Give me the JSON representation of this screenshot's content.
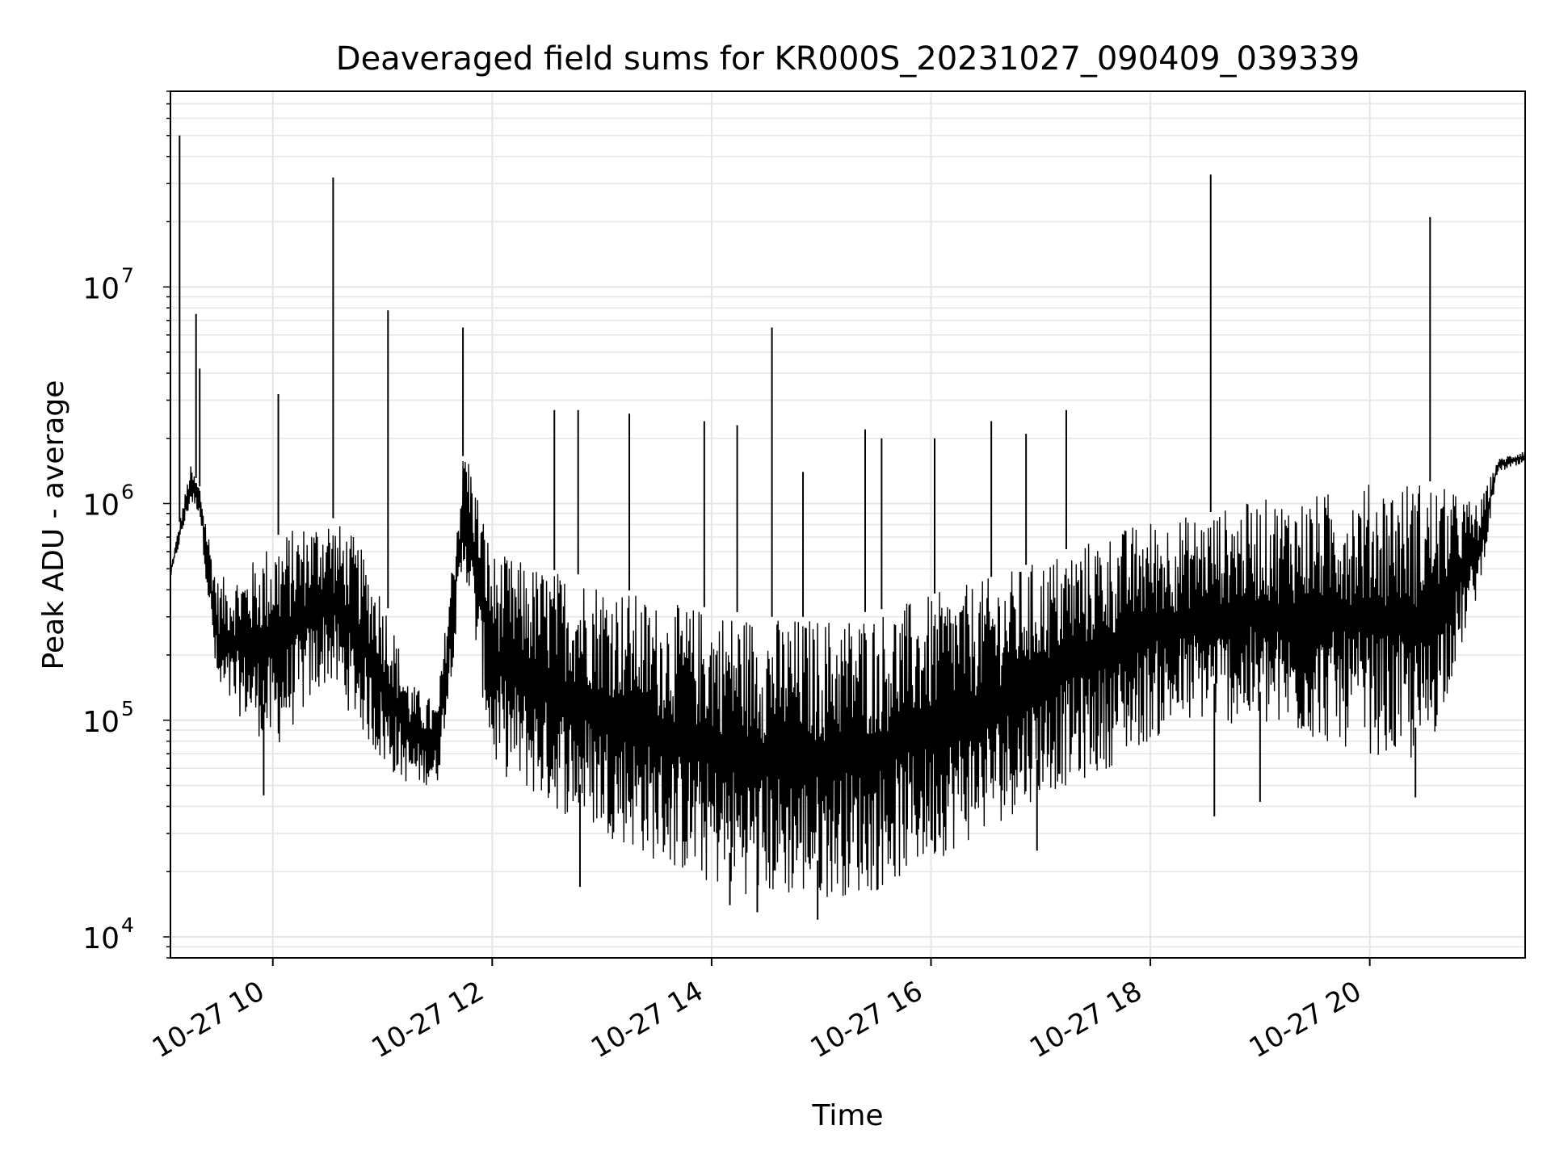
{
  "chart_data": {
    "type": "line",
    "title": "Deaveraged field sums for KR000S_20231027_090409_039339",
    "xlabel": "Time",
    "ylabel": "Peak ADU - average",
    "x_scale": "time",
    "y_scale": "log",
    "xlim": [
      "2023-10-27 09:04",
      "2023-10-27 21:25"
    ],
    "ylim": [
      8000,
      80000000
    ],
    "x_ticks": [
      {
        "value": "2023-10-27 10:00",
        "label": "10-27 10"
      },
      {
        "value": "2023-10-27 12:00",
        "label": "10-27 12"
      },
      {
        "value": "2023-10-27 14:00",
        "label": "10-27 14"
      },
      {
        "value": "2023-10-27 16:00",
        "label": "10-27 16"
      },
      {
        "value": "2023-10-27 18:00",
        "label": "10-27 18"
      },
      {
        "value": "2023-10-27 20:00",
        "label": "10-27 20"
      }
    ],
    "y_ticks": [
      {
        "value": 10000,
        "base": "10",
        "exp": "4"
      },
      {
        "value": 100000,
        "base": "10",
        "exp": "5"
      },
      {
        "value": 1000000,
        "base": "10",
        "exp": "6"
      },
      {
        "value": 10000000,
        "base": "10",
        "exp": "7"
      }
    ],
    "grid": true,
    "line_color": "#000000",
    "grid_color": "#e6e6e6",
    "baseline": {
      "x": [
        "2023-10-27 09:04",
        "2023-10-27 09:15",
        "2023-10-27 09:20",
        "2023-10-27 09:30",
        "2023-10-27 09:45",
        "2023-10-27 10:00",
        "2023-10-27 10:30",
        "2023-10-27 10:45",
        "2023-10-27 11:00",
        "2023-10-27 11:15",
        "2023-10-27 11:30",
        "2023-10-27 11:45",
        "2023-10-27 12:00",
        "2023-10-27 12:30",
        "2023-10-27 13:00",
        "2023-10-27 13:30",
        "2023-10-27 14:00",
        "2023-10-27 14:30",
        "2023-10-27 15:00",
        "2023-10-27 15:30",
        "2023-10-27 16:00",
        "2023-10-27 16:30",
        "2023-10-27 17:00",
        "2023-10-27 17:30",
        "2023-10-27 18:00",
        "2023-10-27 18:30",
        "2023-10-27 19:00",
        "2023-10-27 19:30",
        "2023-10-27 20:00",
        "2023-10-27 20:30",
        "2023-10-27 21:00",
        "2023-10-27 21:10",
        "2023-10-27 21:25"
      ],
      "upper": [
        500000,
        1500000,
        1200000,
        450000,
        500000,
        700000,
        900000,
        700000,
        400000,
        150000,
        120000,
        2000000,
        600000,
        500000,
        450000,
        350000,
        330000,
        300000,
        300000,
        320000,
        380000,
        450000,
        550000,
        700000,
        850000,
        900000,
        1050000,
        1100000,
        1250000,
        1300000,
        1000000,
        1600000,
        1800000
      ],
      "lower": [
        450000,
        1000000,
        900000,
        120000,
        100000,
        70000,
        150000,
        100000,
        60000,
        50000,
        50000,
        500000,
        60000,
        40000,
        30000,
        22000,
        17000,
        15000,
        15000,
        16000,
        22000,
        30000,
        45000,
        55000,
        80000,
        100000,
        90000,
        80000,
        70000,
        60000,
        400000,
        1400000,
        1500000
      ]
    },
    "spikes": [
      {
        "x": "2023-10-27 09:09",
        "y": 50000000
      },
      {
        "x": "2023-10-27 09:18",
        "y": 7500000
      },
      {
        "x": "2023-10-27 09:20",
        "y": 4200000
      },
      {
        "x": "2023-10-27 10:03",
        "y": 3200000
      },
      {
        "x": "2023-10-27 10:33",
        "y": 32000000
      },
      {
        "x": "2023-10-27 11:03",
        "y": 7800000
      },
      {
        "x": "2023-10-27 11:44",
        "y": 6500000
      },
      {
        "x": "2023-10-27 12:34",
        "y": 2700000
      },
      {
        "x": "2023-10-27 12:47",
        "y": 2700000
      },
      {
        "x": "2023-10-27 13:15",
        "y": 2600000
      },
      {
        "x": "2023-10-27 13:56",
        "y": 2400000
      },
      {
        "x": "2023-10-27 14:14",
        "y": 2300000
      },
      {
        "x": "2023-10-27 14:33",
        "y": 6500000
      },
      {
        "x": "2023-10-27 14:50",
        "y": 1400000
      },
      {
        "x": "2023-10-27 15:24",
        "y": 2200000
      },
      {
        "x": "2023-10-27 15:33",
        "y": 2000000
      },
      {
        "x": "2023-10-27 16:02",
        "y": 2000000
      },
      {
        "x": "2023-10-27 16:33",
        "y": 2400000
      },
      {
        "x": "2023-10-27 16:52",
        "y": 2100000
      },
      {
        "x": "2023-10-27 17:14",
        "y": 2700000
      },
      {
        "x": "2023-10-27 18:33",
        "y": 33000000
      },
      {
        "x": "2023-10-27 20:33",
        "y": 21000000
      }
    ],
    "dips": [
      {
        "x": "2023-10-27 09:55",
        "y": 45000
      },
      {
        "x": "2023-10-27 12:48",
        "y": 17000
      },
      {
        "x": "2023-10-27 14:10",
        "y": 14000
      },
      {
        "x": "2023-10-27 14:25",
        "y": 13000
      },
      {
        "x": "2023-10-27 14:58",
        "y": 12000
      },
      {
        "x": "2023-10-27 16:58",
        "y": 25000
      },
      {
        "x": "2023-10-27 18:35",
        "y": 36000
      },
      {
        "x": "2023-10-27 19:00",
        "y": 42000
      },
      {
        "x": "2023-10-27 20:25",
        "y": 44000
      }
    ]
  }
}
